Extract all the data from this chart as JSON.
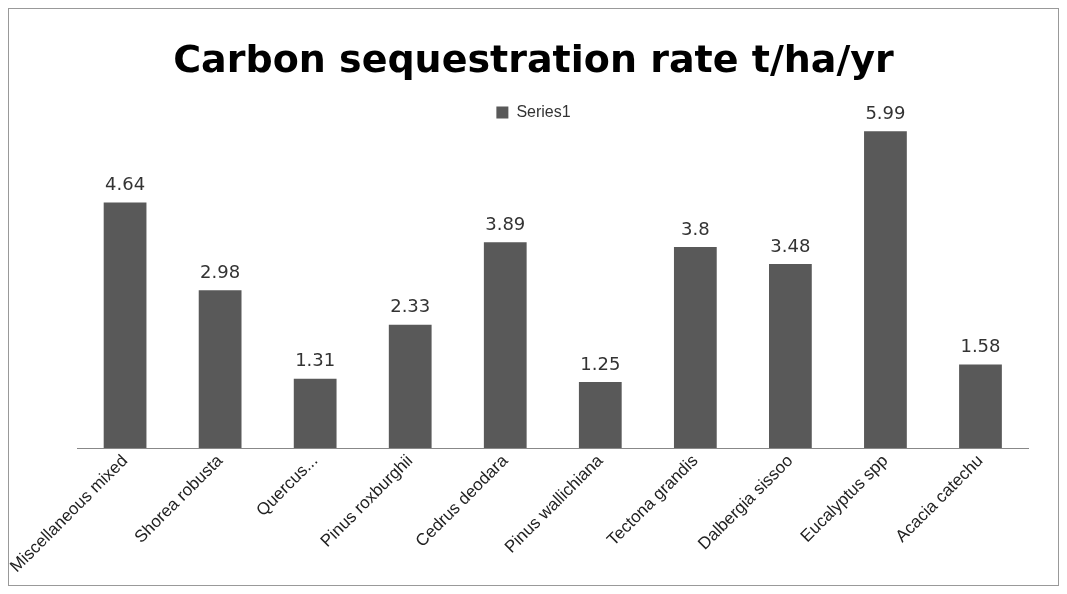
{
  "chart_data": {
    "type": "bar",
    "title": "Carbon sequestration rate t/ha/yr",
    "categories": [
      "Miscellaneous mixed",
      "Shorea robusta",
      "Quercus...",
      "Pinus roxburghii",
      "Cedrus deodara",
      "Pinus wallichiana",
      "Tectona grandis",
      "Dalbergia sissoo",
      "Eucalyptus spp",
      "Acacia catechu"
    ],
    "series": [
      {
        "name": "Series1",
        "color": "#595959",
        "values": [
          4.64,
          2.98,
          1.31,
          2.33,
          3.89,
          1.25,
          3.8,
          3.48,
          5.99,
          1.58
        ]
      }
    ],
    "data_labels": true,
    "legend": "top",
    "grid": false,
    "tick_labels": "x"
  }
}
